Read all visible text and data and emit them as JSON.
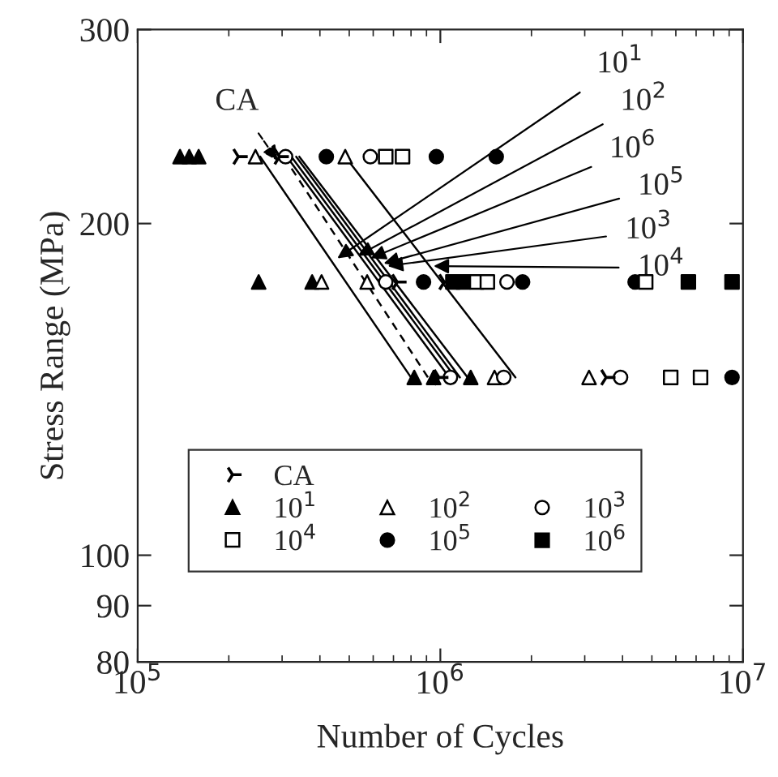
{
  "chart_data": {
    "type": "scatter",
    "xlabel": "Number of Cycles",
    "ylabel": "Stress Range (MPa)",
    "log": "xy",
    "xlim": [
      100000,
      10000000
    ],
    "ylim": [
      80,
      300
    ],
    "xticks": [
      {
        "value": 100000,
        "label": "10$^{5}$"
      },
      {
        "value": 1000000,
        "label": "10$^{6}$"
      },
      {
        "value": 10000000,
        "label": "10$^{7}$"
      }
    ],
    "yticks": [
      80,
      90,
      100,
      200,
      300
    ],
    "grid": false,
    "legend": "bottom left",
    "series": [
      {
        "name": "CA",
        "marker": "cross",
        "color": "#000000",
        "x": [
          215000,
          294000,
          720000,
          1030000,
          990000,
          3530000
        ],
        "values": [
          230,
          230,
          177,
          177,
          145,
          145
        ]
      },
      {
        "name": "10$^{1}$",
        "marker": "triangle",
        "color": "#000000",
        "x": [
          138000,
          148000,
          159000,
          251000,
          377000,
          820000,
          950000,
          1260000
        ],
        "values": [
          230,
          230,
          230,
          177,
          177,
          145,
          145,
          145
        ]
      },
      {
        "name": "10$^{2}$",
        "marker": "triangle",
        "color": "#ffffff",
        "x": [
          245000,
          485000,
          405000,
          573000,
          1510000,
          3100000
        ],
        "values": [
          230,
          230,
          177,
          177,
          145,
          145
        ]
      },
      {
        "name": "10$^{3}$",
        "marker": "circle",
        "color": "#ffffff",
        "x": [
          308000,
          587000,
          660000,
          1660000,
          1080000,
          1620000,
          3940000
        ],
        "values": [
          230,
          230,
          177,
          177,
          145,
          145,
          145
        ]
      },
      {
        "name": "10$^{4}$",
        "marker": "square",
        "color": "#ffffff",
        "x": [
          660000,
          750000,
          1320000,
          1430000,
          4770000,
          5770000,
          7240000
        ],
        "values": [
          230,
          230,
          177,
          177,
          177,
          145,
          145
        ]
      },
      {
        "name": "10$^{5}$",
        "marker": "circle",
        "color": "#000000",
        "x": [
          420000,
          970000,
          1530000,
          880000,
          1870000,
          4400000,
          9200000
        ],
        "values": [
          230,
          230,
          230,
          177,
          177,
          177,
          145
        ]
      },
      {
        "name": "10$^{6}$",
        "marker": "square",
        "color": "#000000",
        "x": [
          1100000,
          1190000,
          6600000,
          9200000
        ],
        "values": [
          177,
          177,
          177,
          177
        ]
      },
      {
        "type": "line",
        "line_style": "solid",
        "color": "#000000",
        "x": [
          254000,
          800000
        ],
        "values": [
          230,
          145
        ]
      },
      {
        "type": "line",
        "line_style": "dashed",
        "color": "#000000",
        "x": [
          304000,
          910000
        ],
        "values": [
          230,
          145
        ]
      },
      {
        "type": "line",
        "line_style": "solid",
        "color": "#000000",
        "x": [
          311000,
          1070000
        ],
        "values": [
          230,
          145
        ]
      },
      {
        "type": "line",
        "line_style": "solid",
        "color": "#000000",
        "x": [
          322000,
          1120000
        ],
        "values": [
          230,
          145
        ]
      },
      {
        "type": "line",
        "line_style": "solid",
        "color": "#000000",
        "x": [
          334000,
          1160000
        ],
        "values": [
          230,
          145
        ]
      },
      {
        "type": "line",
        "line_style": "solid",
        "color": "#000000",
        "x": [
          342000,
          1230000
        ],
        "values": [
          230,
          145
        ]
      },
      {
        "type": "line",
        "line_style": "solid",
        "color": "#000000",
        "x": [
          485000,
          1770000
        ],
        "values": [
          230,
          145
        ]
      }
    ],
    "annotations": [
      {
        "text": "CA",
        "x": 290000,
        "y": 228
      },
      {
        "text": "10$^{1}$",
        "x": 457000,
        "y": 186
      },
      {
        "text": "10$^{2}$",
        "x": 534000,
        "y": 187
      },
      {
        "text": "10$^{6}$",
        "x": 588000,
        "y": 186
      },
      {
        "text": "10$^{5}$",
        "x": 650000,
        "y": 184
      },
      {
        "text": "10$^{3}$",
        "x": 670000,
        "y": 183
      },
      {
        "text": "10$^{4}$",
        "x": 950000,
        "y": 183
      }
    ]
  }
}
